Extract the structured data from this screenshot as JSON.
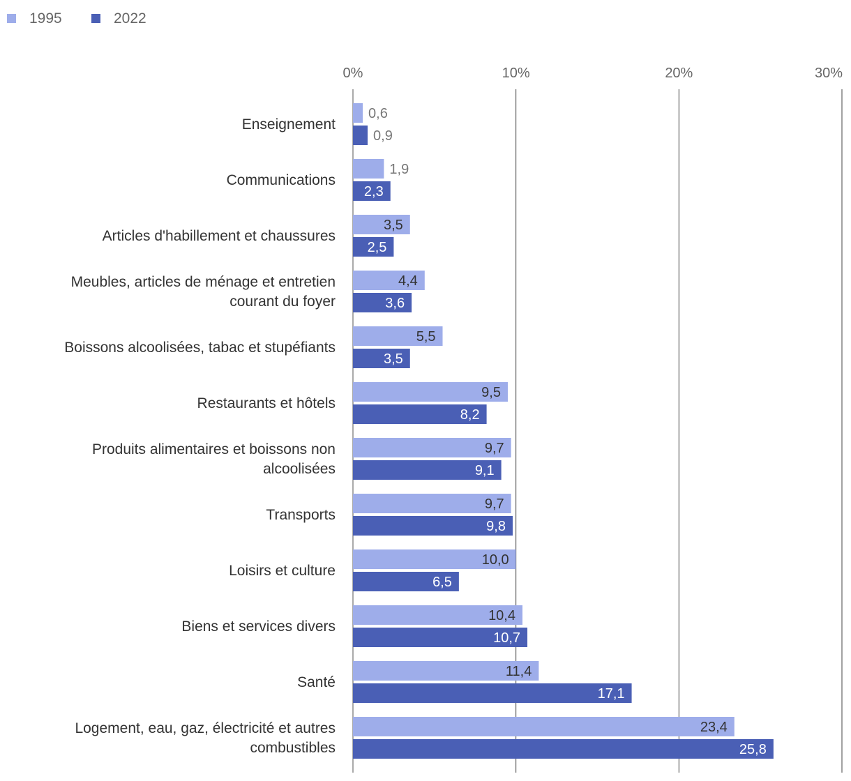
{
  "chart_data": {
    "type": "bar",
    "orientation": "horizontal",
    "title": "",
    "xlabel": "",
    "ylabel": "",
    "xlim": [
      0,
      30
    ],
    "x_ticks": [
      "0%",
      "10%",
      "20%",
      "30%"
    ],
    "grid": true,
    "legend_position": "top-left",
    "categories": [
      "Enseignement",
      "Communications",
      "Articles d'habillement et chaussures",
      "Meubles, articles de ménage et entretien courant du foyer",
      "Boissons alcoolisées, tabac et stupéfiants",
      "Restaurants et hôtels",
      "Produits alimentaires et boissons non alcoolisées",
      "Transports",
      "Loisirs et culture",
      "Biens et services divers",
      "Santé",
      "Logement, eau, gaz, électricité et autres combustibles"
    ],
    "series": [
      {
        "name": "1995",
        "color": "#9eadea",
        "values": [
          0.6,
          1.9,
          3.5,
          4.4,
          5.5,
          9.5,
          9.7,
          9.7,
          10.0,
          10.4,
          11.4,
          23.4
        ],
        "labels": [
          "0,6",
          "1,9",
          "3,5",
          "4,4",
          "5,5",
          "9,5",
          "9,7",
          "9,7",
          "10,0",
          "10,4",
          "11,4",
          "23,4"
        ]
      },
      {
        "name": "2022",
        "color": "#4a5fb5",
        "values": [
          0.9,
          2.3,
          2.5,
          3.6,
          3.5,
          8.2,
          9.1,
          9.8,
          6.5,
          10.7,
          17.1,
          25.8
        ],
        "labels": [
          "0,9",
          "2,3",
          "2,5",
          "3,6",
          "3,5",
          "8,2",
          "9,1",
          "9,8",
          "6,5",
          "10,7",
          "17,1",
          "25,8"
        ]
      }
    ]
  }
}
